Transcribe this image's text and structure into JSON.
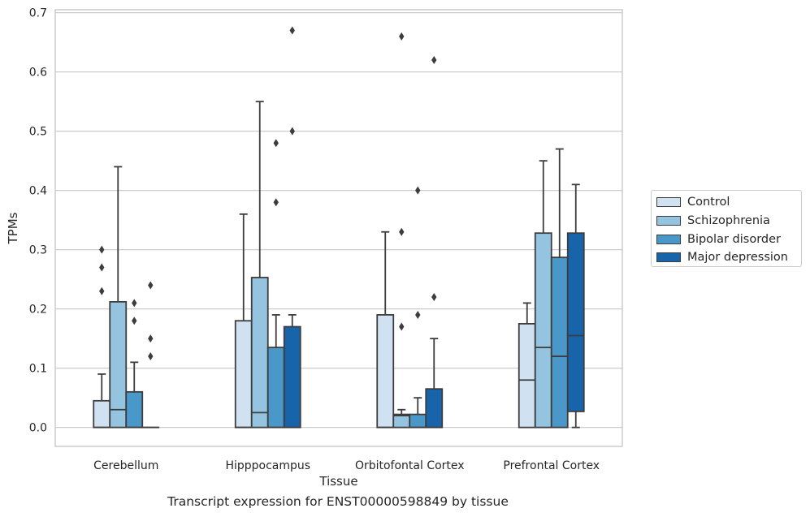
{
  "chart_data": {
    "type": "box",
    "title": "",
    "caption": "Transcript expression for ENST00000598849 by tissue",
    "xlabel": "Tissue",
    "ylabel": "TPMs",
    "ylim": [
      -0.032,
      0.705
    ],
    "yticks": [
      "0.0",
      "0.1",
      "0.2",
      "0.3",
      "0.4",
      "0.5",
      "0.6",
      "0.7"
    ],
    "ytick_values": [
      0,
      0.1,
      0.2,
      0.3,
      0.4,
      0.5,
      0.6,
      0.7
    ],
    "grid": true,
    "legend_position": "right",
    "categories": [
      "Cerebellum",
      "Hipppocampus",
      "Orbitofontal Cortex",
      "Prefrontal Cortex"
    ],
    "series": [
      {
        "name": "Control",
        "color": "#d0e1f2",
        "boxes": [
          {
            "whislo": 0,
            "q1": 0,
            "med": 0,
            "q3": 0.045,
            "whishi": 0.09,
            "fliers": [
              0.23,
              0.27,
              0.3
            ]
          },
          {
            "whislo": 0,
            "q1": 0,
            "med": 0,
            "q3": 0.18,
            "whishi": 0.36,
            "fliers": []
          },
          {
            "whislo": 0,
            "q1": 0,
            "med": 0,
            "q3": 0.19,
            "whishi": 0.33,
            "fliers": []
          },
          {
            "whislo": 0,
            "q1": 0,
            "med": 0.08,
            "q3": 0.175,
            "whishi": 0.21,
            "fliers": []
          }
        ]
      },
      {
        "name": "Schizophrenia",
        "color": "#94c4df",
        "boxes": [
          {
            "whislo": 0,
            "q1": 0,
            "med": 0.03,
            "q3": 0.212,
            "whishi": 0.44,
            "fliers": []
          },
          {
            "whislo": 0,
            "q1": 0,
            "med": 0.025,
            "q3": 0.253,
            "whishi": 0.55,
            "fliers": []
          },
          {
            "whislo": 0,
            "q1": 0,
            "med": 0.02,
            "q3": 0.022,
            "whishi": 0.03,
            "fliers": [
              0.17,
              0.33,
              0.66
            ]
          },
          {
            "whislo": 0,
            "q1": 0,
            "med": 0.135,
            "q3": 0.328,
            "whishi": 0.45,
            "fliers": []
          }
        ]
      },
      {
        "name": "Bipolar disorder",
        "color": "#4a98c9",
        "boxes": [
          {
            "whislo": 0,
            "q1": 0,
            "med": 0,
            "q3": 0.06,
            "whishi": 0.11,
            "fliers": [
              0.18,
              0.21
            ]
          },
          {
            "whislo": 0,
            "q1": 0,
            "med": 0,
            "q3": 0.135,
            "whishi": 0.19,
            "fliers": [
              0.38,
              0.48
            ]
          },
          {
            "whislo": 0,
            "q1": 0,
            "med": 0,
            "q3": 0.022,
            "whishi": 0.05,
            "fliers": [
              0.19,
              0.4
            ]
          },
          {
            "whislo": 0,
            "q1": 0,
            "med": 0.12,
            "q3": 0.287,
            "whishi": 0.47,
            "fliers": []
          }
        ]
      },
      {
        "name": "Major depression",
        "color": "#1764ab",
        "boxes": [
          {
            "whislo": 0,
            "q1": 0,
            "med": 0,
            "q3": 0,
            "whishi": 0,
            "fliers": [
              0.12,
              0.15,
              0.24
            ]
          },
          {
            "whislo": 0,
            "q1": 0,
            "med": 0,
            "q3": 0.17,
            "whishi": 0.19,
            "fliers": [
              0.5,
              0.67
            ]
          },
          {
            "whislo": 0,
            "q1": 0,
            "med": 0,
            "q3": 0.065,
            "whishi": 0.15,
            "fliers": [
              0.22,
              0.62
            ]
          },
          {
            "whislo": 0,
            "q1": 0.027,
            "med": 0.155,
            "q3": 0.328,
            "whishi": 0.41,
            "fliers": []
          }
        ]
      }
    ]
  }
}
